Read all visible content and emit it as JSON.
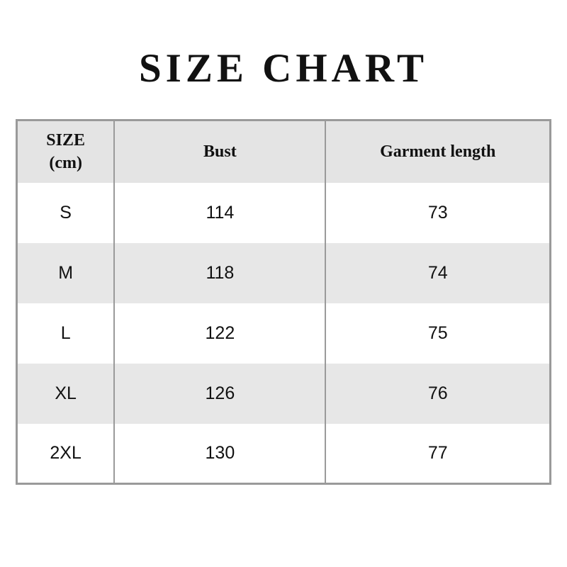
{
  "title": "SIZE CHART",
  "colors": {
    "page_bg": "#ffffff",
    "header_bg": "#e4e4e4",
    "stripe_bg": "#e7e7e7",
    "border": "#9a9a9a",
    "text": "#111111"
  },
  "table": {
    "header": {
      "col1_line1": "SIZE",
      "col1_line2": "(cm)",
      "col2": "Bust",
      "col3": "Garment length"
    }
  },
  "chart_data": {
    "type": "table",
    "title": "SIZE CHART",
    "columns": [
      "SIZE (cm)",
      "Bust",
      "Garment length"
    ],
    "rows": [
      [
        "S",
        "114",
        "73"
      ],
      [
        "M",
        "118",
        "74"
      ],
      [
        "L",
        "122",
        "75"
      ],
      [
        "XL",
        "126",
        "76"
      ],
      [
        "2XL",
        "130",
        "77"
      ]
    ]
  }
}
